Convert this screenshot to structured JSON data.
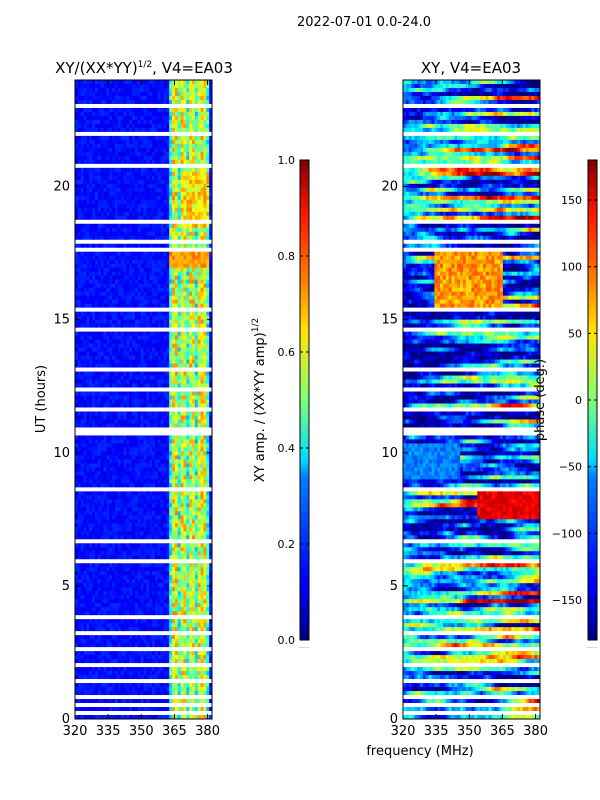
{
  "suptitle": "2022-07-01 0.0-24.0",
  "chart_data": [
    {
      "type": "heatmap",
      "title_main": "XY/(XX*YY)",
      "title_exp": "1/2",
      "title_suffix": ", V4=EA03",
      "ylabel": "UT (hours)",
      "xlabel": "",
      "xlim": [
        320,
        382
      ],
      "ylim": [
        0,
        24
      ],
      "xticks": [
        320,
        335,
        350,
        365,
        380
      ],
      "xtick_labels": [
        "320",
        "335",
        "350",
        "365",
        "380"
      ],
      "yticks": [
        0,
        5,
        10,
        15,
        20
      ],
      "ytick_labels": [
        "0",
        "5",
        "10",
        "15",
        "20"
      ],
      "colormap": "jet",
      "colorbar": {
        "label_main": "XY amp. / (XX*YY amp)",
        "label_exp": "1/2",
        "range": [
          0.0,
          1.0
        ],
        "ticks": [
          0.0,
          0.2,
          0.4,
          0.6,
          0.8,
          1.0
        ],
        "tick_labels": [
          "0.0",
          "0.2",
          "0.4",
          "0.6",
          "0.8",
          "1.0"
        ]
      }
    },
    {
      "type": "heatmap",
      "title_main": "XY, V4=EA03",
      "xlabel": "frequency (MHz)",
      "ylabel": "",
      "xlim": [
        320,
        382
      ],
      "ylim": [
        0,
        24
      ],
      "xticks": [
        320,
        335,
        350,
        365,
        380
      ],
      "xtick_labels": [
        "320",
        "335",
        "350",
        "365",
        "380"
      ],
      "yticks": [
        0,
        5,
        10,
        15,
        20
      ],
      "ytick_labels": [
        "0",
        "5",
        "10",
        "15",
        "20"
      ],
      "colormap": "jet",
      "colorbar": {
        "label_main": "phase (deg.)",
        "range": [
          -180,
          180
        ],
        "ticks": [
          -150,
          -100,
          -50,
          0,
          50,
          100,
          150
        ],
        "tick_labels": [
          "−150",
          "−100",
          "−50",
          "0",
          "50",
          "100",
          "150"
        ]
      }
    }
  ],
  "gaps_hours": [
    [
      0.1,
      0.25
    ],
    [
      0.45,
      0.55
    ],
    [
      0.8,
      0.9
    ],
    [
      1.3,
      1.45
    ],
    [
      1.95,
      2.1
    ],
    [
      2.55,
      2.65
    ],
    [
      3.2,
      3.3
    ],
    [
      3.75,
      3.85
    ],
    [
      4.45,
      4.55
    ],
    [
      5.05,
      5.15
    ],
    [
      5.55,
      5.6
    ],
    [
      5.9,
      6.0
    ],
    [
      6.6,
      6.7
    ],
    [
      7.05,
      7.1
    ],
    [
      7.35,
      7.4
    ],
    [
      7.75,
      7.8
    ],
    [
      8.55,
      8.75
    ],
    [
      9.7,
      9.8
    ],
    [
      10.65,
      11.0
    ],
    [
      11.6,
      11.65
    ],
    [
      12.35,
      12.45
    ],
    [
      13.1,
      13.25
    ],
    [
      13.9,
      14.0
    ],
    [
      14.55,
      14.75
    ],
    [
      15.3,
      15.4
    ],
    [
      16.3,
      16.4
    ],
    [
      17.2,
      17.3
    ],
    [
      17.6,
      17.7
    ],
    [
      17.9,
      18.0
    ],
    [
      18.25,
      18.35
    ],
    [
      18.6,
      18.7
    ],
    [
      19.05,
      19.1
    ],
    [
      20.7,
      20.8
    ],
    [
      21.95,
      22.05
    ],
    [
      22.9,
      23.1
    ]
  ]
}
